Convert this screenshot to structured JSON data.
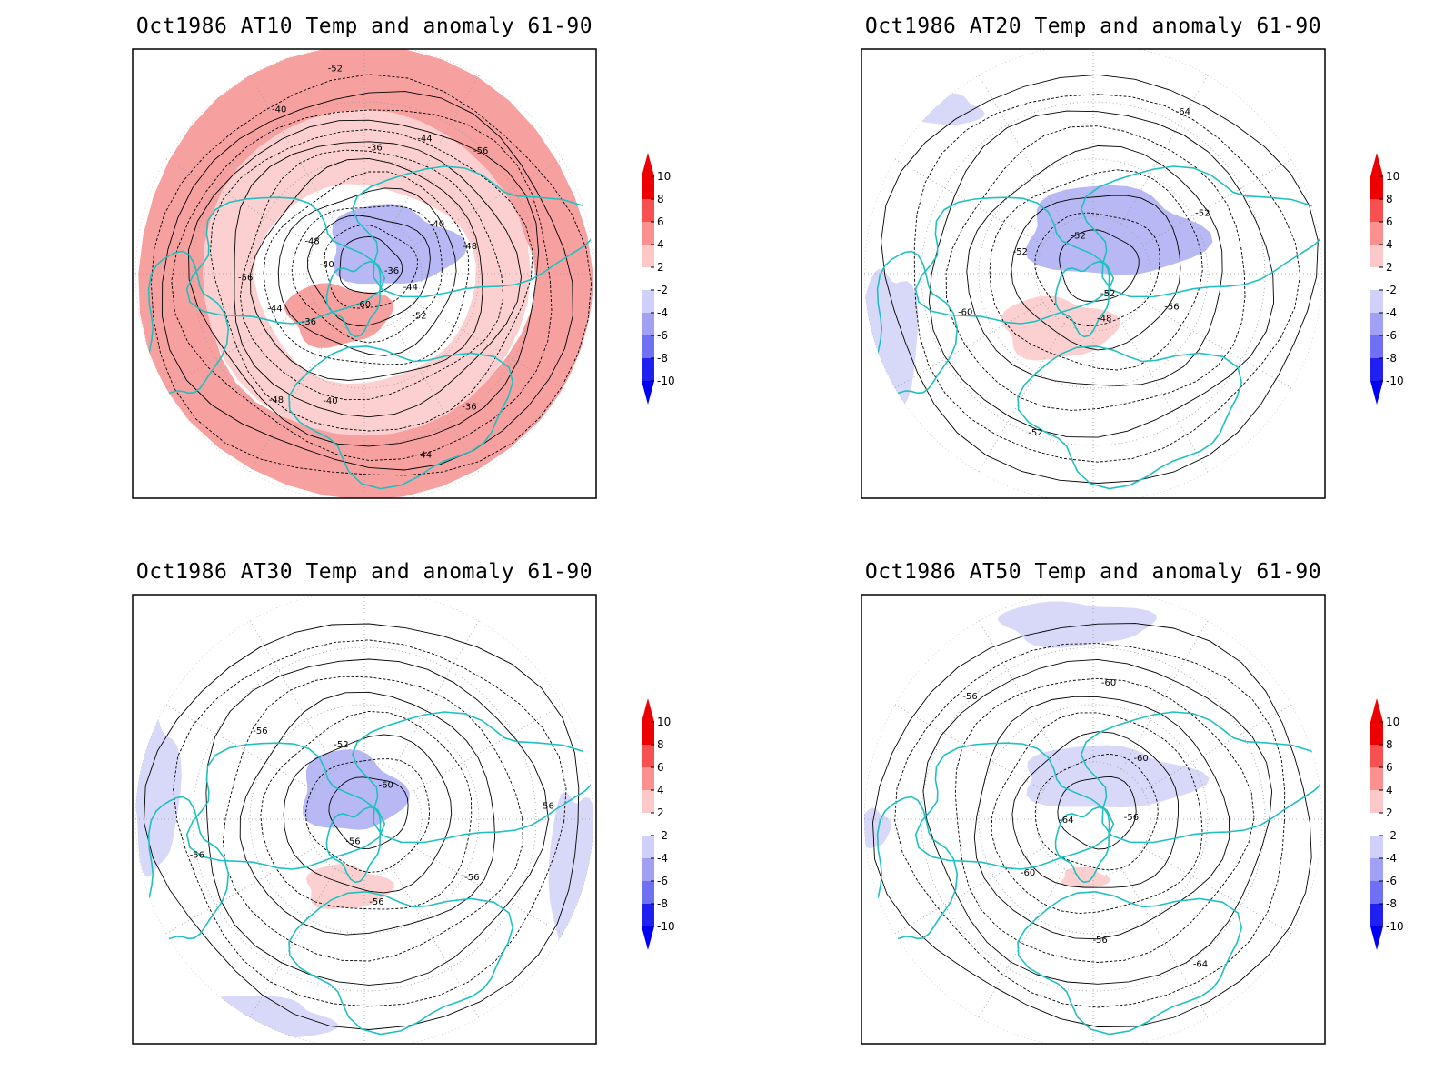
{
  "panels": [
    {
      "title": "Oct1986 AT10 Temp and anomaly 61-90",
      "contour_labels": [
        "-36",
        "-36",
        "-36",
        "-36",
        "-40",
        "-40",
        "-40",
        "-40",
        "-44",
        "-44",
        "-44",
        "-44",
        "-48",
        "-48",
        "-48",
        "-52",
        "-52",
        "-56",
        "-56",
        "-60"
      ],
      "anomaly_regions": [
        {
          "level": 4,
          "shape": "outer ring"
        },
        {
          "level": 2,
          "shape": "inner ring"
        },
        {
          "level": -4,
          "shape": "blob near pole, Siberian side"
        },
        {
          "level": 4,
          "shape": "blob near pole, Greenland side"
        }
      ]
    },
    {
      "title": "Oct1986 AT20 Temp and anomaly 61-90",
      "contour_labels": [
        "-52",
        "-52",
        "-52",
        "-52",
        "-52",
        "-56",
        "-60",
        "-64",
        "-48"
      ],
      "anomaly_regions": [
        {
          "level": -4,
          "shape": "blob north of Siberia"
        },
        {
          "level": 2,
          "shape": "blob over Greenland / N Atlantic"
        },
        {
          "level": -2,
          "shape": "patch over Pacific"
        },
        {
          "level": -2,
          "shape": "patch at top-left"
        }
      ]
    },
    {
      "title": "Oct1986 AT30 Temp and anomaly 61-90",
      "contour_labels": [
        "-56",
        "-52",
        "-56",
        "-56",
        "-60",
        "-56",
        "-56",
        "-56"
      ],
      "anomaly_regions": [
        {
          "level": -4,
          "shape": "blob near pole"
        },
        {
          "level": 2,
          "shape": "blob over Greenland"
        },
        {
          "level": -2,
          "shape": "patches at rim"
        }
      ]
    },
    {
      "title": "Oct1986 AT50 Temp and anomaly 61-90",
      "contour_labels": [
        "-64",
        "-60",
        "-56",
        "-56",
        "-56",
        "-60",
        "-60",
        "-64"
      ],
      "anomaly_regions": [
        {
          "level": -2,
          "shape": "band north of Siberia"
        },
        {
          "level": -2,
          "shape": "patch at top"
        },
        {
          "level": 2,
          "shape": "small blob near Greenland"
        }
      ]
    }
  ],
  "colorbar": {
    "labels": [
      "10",
      "8",
      "6",
      "4",
      "2",
      "-2",
      "-4",
      "-6",
      "-8",
      "-10"
    ],
    "colors": [
      "#ef0000",
      "#f75050",
      "#fa9090",
      "#fcc8c8",
      "#ffffff",
      "#d0d0fa",
      "#a0a0f5",
      "#7070f5",
      "#2020f0"
    ],
    "tip_top_color": "#ef0000",
    "tip_bottom_color": "#0000f5"
  },
  "style": {
    "coastline_color": "#20c0c0",
    "contour_color": "#000000",
    "grid_color": "#999999"
  }
}
